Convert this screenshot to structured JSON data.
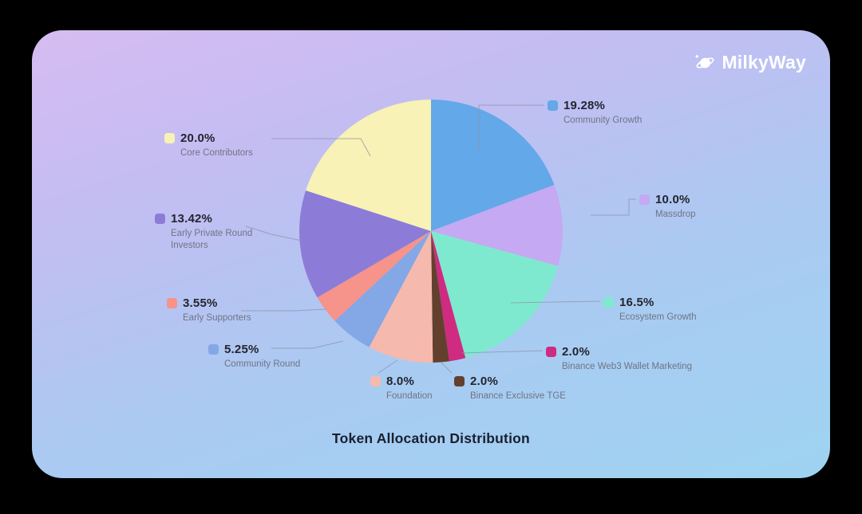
{
  "brand": {
    "name": "MilkyWay"
  },
  "chart_data": {
    "type": "pie",
    "title": "Token Allocation Distribution",
    "start_angle_deg": 0,
    "direction": "clockwise",
    "total": 100,
    "segments": [
      {
        "label": "Community Growth",
        "value": 19.28,
        "display": "19.28%",
        "color": "#63a8e8"
      },
      {
        "label": "Massdrop",
        "value": 10.0,
        "display": "10.0%",
        "color": "#c5a9f2"
      },
      {
        "label": "Ecosystem Growth",
        "value": 16.5,
        "display": "16.5%",
        "color": "#7fe9cf"
      },
      {
        "label": "Binance Web3 Wallet Marketing",
        "value": 2.0,
        "display": "2.0%",
        "color": "#cf2b80"
      },
      {
        "label": "Binance Exclusive TGE",
        "value": 2.0,
        "display": "2.0%",
        "color": "#63402e"
      },
      {
        "label": "Foundation",
        "value": 8.0,
        "display": "8.0%",
        "color": "#f6b9ad"
      },
      {
        "label": "Community Round",
        "value": 5.25,
        "display": "5.25%",
        "color": "#84a7e6"
      },
      {
        "label": "Early Supporters",
        "value": 3.55,
        "display": "3.55%",
        "color": "#f6938a"
      },
      {
        "label": "Early Private Round Investors",
        "value": 13.42,
        "display": "13.42%",
        "color": "#8c7cd8"
      },
      {
        "label": "Core Contributors",
        "value": 20.0,
        "display": "20.0%",
        "color": "#f8f2b6"
      }
    ]
  },
  "theme": {
    "accent_text": "#23242e",
    "muted_text": "#6f7484",
    "leader_line": "#8d93a6",
    "logo_color": "#ffffff"
  }
}
